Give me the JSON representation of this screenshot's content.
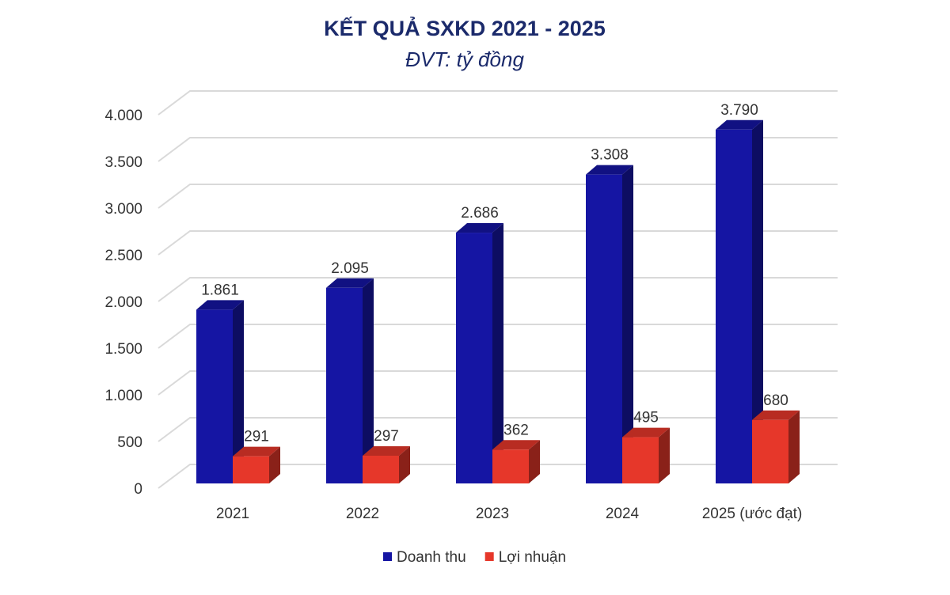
{
  "chart_data": {
    "type": "bar3d",
    "title": "KẾT QUẢ SXKD 2021 - 2025",
    "subtitle": "ĐVT: tỷ đồng",
    "categories": [
      "2021",
      "2022",
      "2023",
      "2024",
      "2025 (ước đạt)"
    ],
    "series": [
      {
        "name": "Doanh thu",
        "color": "#1515a3",
        "values": [
          1861,
          2095,
          2686,
          3308,
          3790
        ],
        "value_labels": [
          "1.861",
          "2.095",
          "2.686",
          "3.308",
          "3.790"
        ]
      },
      {
        "name": "Lợi nhuận",
        "color": "#e6372a",
        "values": [
          291,
          297,
          362,
          495,
          680
        ]
      }
    ],
    "ylim": [
      0,
      4000
    ],
    "yticks": [
      0,
      500,
      {
        "value": 1000,
        "label": "1.000"
      },
      {
        "value": 1500,
        "label": "1.500"
      },
      {
        "value": 2000,
        "label": "2.000"
      },
      {
        "value": 2500,
        "label": "2.500"
      },
      {
        "value": 3000,
        "label": "3.000"
      },
      {
        "value": 3500,
        "label": "3.500"
      },
      {
        "value": 4000,
        "label": "4.000"
      }
    ],
    "grid": true,
    "legend": "bottom"
  }
}
